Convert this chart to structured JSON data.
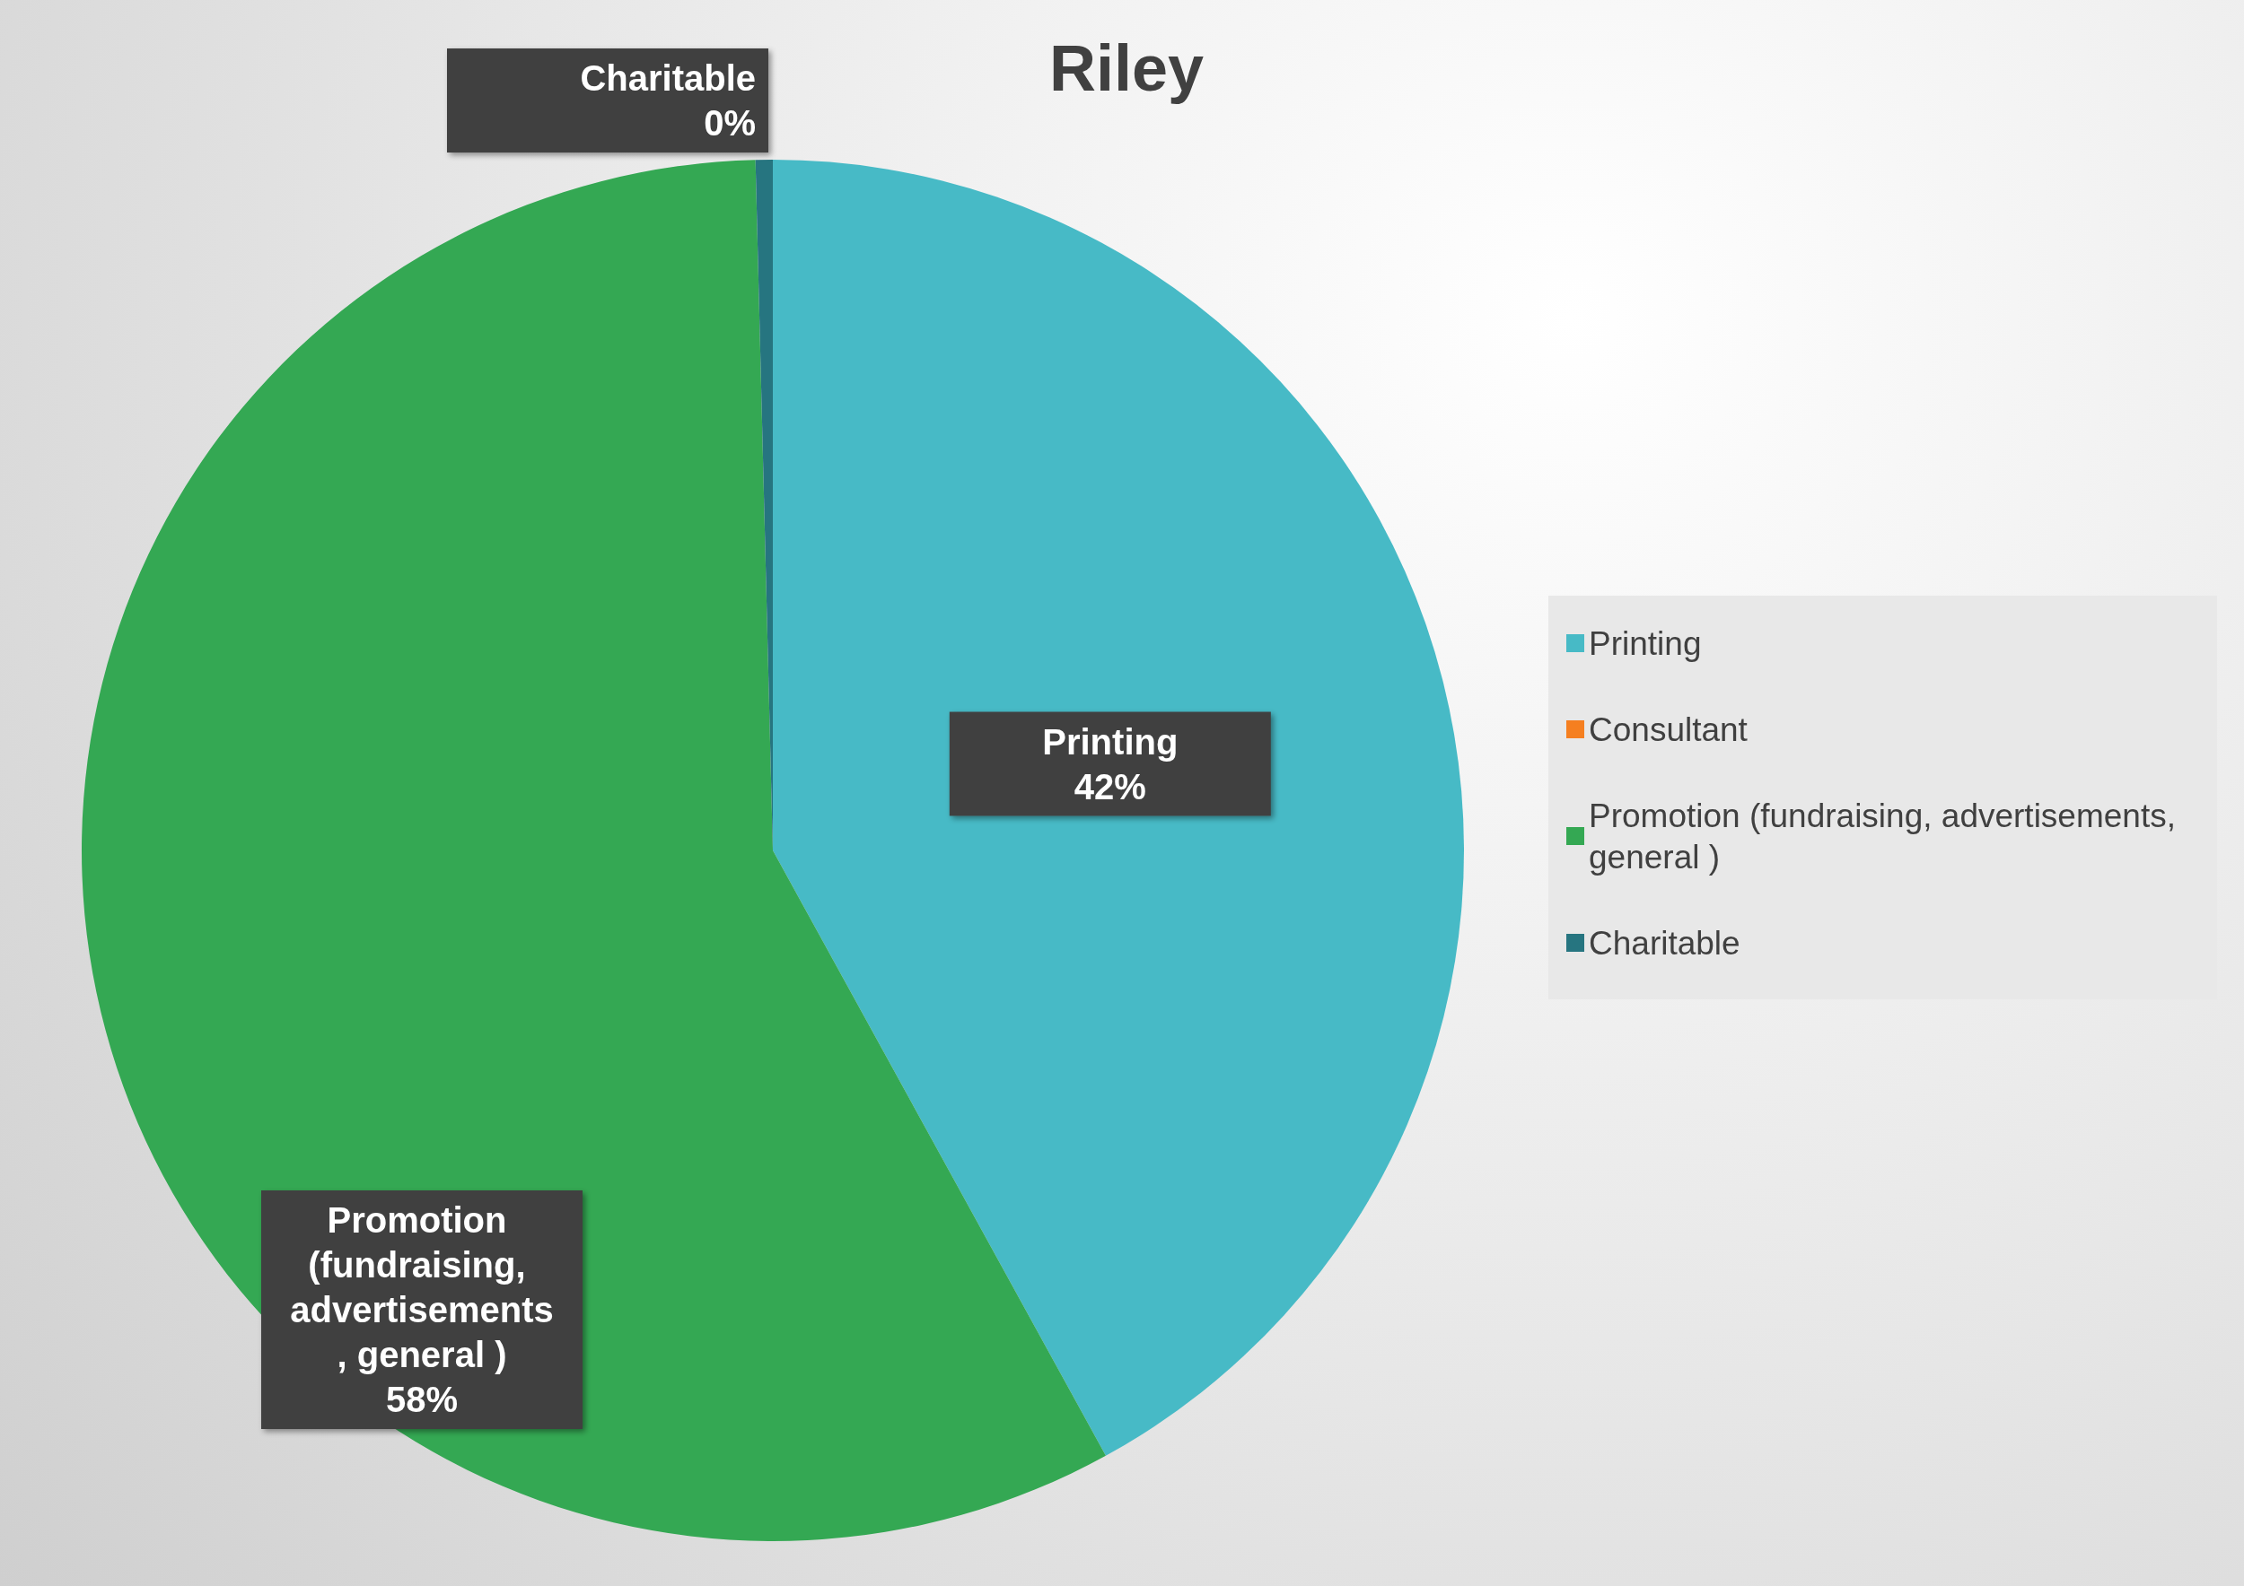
{
  "chart_data": {
    "type": "pie",
    "title": "Riley",
    "categories": [
      "Printing",
      "Consultant",
      "Promotion (fundraising, advertisements, general )",
      "Charitable"
    ],
    "values": [
      42,
      0,
      57.6,
      0.4
    ],
    "value_labels": [
      "42%",
      null,
      "58%",
      "0%"
    ],
    "colors": [
      "#47bac6",
      "#f57f20",
      "#34a853",
      "#267580"
    ],
    "legend": "right"
  }
}
